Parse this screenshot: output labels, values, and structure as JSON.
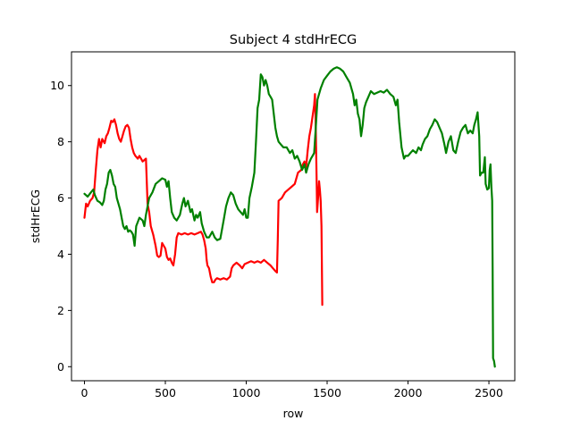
{
  "chart_data": {
    "type": "line",
    "title": "Subject 4 stdHrECG",
    "xlabel": "row",
    "ylabel": "stdHrECG",
    "xlim": [
      -80,
      2660
    ],
    "ylim": [
      -0.5,
      11.2
    ],
    "xticks": [
      0,
      500,
      1000,
      1500,
      2000,
      2500
    ],
    "yticks": [
      0,
      2,
      4,
      6,
      8,
      10
    ],
    "grid": false,
    "series": [
      {
        "color": "#ff0000",
        "points": [
          [
            0,
            5.3
          ],
          [
            10,
            5.8
          ],
          [
            20,
            5.7
          ],
          [
            35,
            5.9
          ],
          [
            50,
            6.0
          ],
          [
            60,
            6.2
          ],
          [
            70,
            7.0
          ],
          [
            80,
            7.7
          ],
          [
            90,
            8.1
          ],
          [
            100,
            7.8
          ],
          [
            110,
            8.1
          ],
          [
            125,
            7.95
          ],
          [
            135,
            8.2
          ],
          [
            145,
            8.3
          ],
          [
            155,
            8.5
          ],
          [
            165,
            8.75
          ],
          [
            175,
            8.7
          ],
          [
            185,
            8.8
          ],
          [
            195,
            8.6
          ],
          [
            205,
            8.3
          ],
          [
            215,
            8.1
          ],
          [
            225,
            8.0
          ],
          [
            235,
            8.2
          ],
          [
            245,
            8.4
          ],
          [
            255,
            8.55
          ],
          [
            265,
            8.6
          ],
          [
            275,
            8.5
          ],
          [
            285,
            8.1
          ],
          [
            295,
            7.8
          ],
          [
            305,
            7.6
          ],
          [
            315,
            7.5
          ],
          [
            330,
            7.4
          ],
          [
            340,
            7.5
          ],
          [
            350,
            7.4
          ],
          [
            360,
            7.3
          ],
          [
            370,
            7.35
          ],
          [
            380,
            7.4
          ],
          [
            385,
            6.6
          ],
          [
            390,
            5.8
          ],
          [
            400,
            5.5
          ],
          [
            410,
            5.0
          ],
          [
            425,
            4.7
          ],
          [
            440,
            4.3
          ],
          [
            450,
            3.95
          ],
          [
            460,
            3.9
          ],
          [
            470,
            3.95
          ],
          [
            480,
            4.4
          ],
          [
            490,
            4.3
          ],
          [
            500,
            4.2
          ],
          [
            510,
            3.9
          ],
          [
            520,
            3.8
          ],
          [
            530,
            3.85
          ],
          [
            540,
            3.7
          ],
          [
            550,
            3.6
          ],
          [
            560,
            4.0
          ],
          [
            570,
            4.6
          ],
          [
            580,
            4.75
          ],
          [
            600,
            4.7
          ],
          [
            620,
            4.75
          ],
          [
            640,
            4.7
          ],
          [
            660,
            4.75
          ],
          [
            680,
            4.7
          ],
          [
            700,
            4.75
          ],
          [
            720,
            4.8
          ],
          [
            730,
            4.7
          ],
          [
            740,
            4.5
          ],
          [
            750,
            4.2
          ],
          [
            755,
            3.8
          ],
          [
            760,
            3.6
          ],
          [
            770,
            3.5
          ],
          [
            780,
            3.2
          ],
          [
            790,
            3.0
          ],
          [
            800,
            3.0
          ],
          [
            810,
            3.1
          ],
          [
            820,
            3.15
          ],
          [
            840,
            3.1
          ],
          [
            860,
            3.15
          ],
          [
            880,
            3.1
          ],
          [
            900,
            3.2
          ],
          [
            910,
            3.5
          ],
          [
            920,
            3.6
          ],
          [
            940,
            3.7
          ],
          [
            960,
            3.6
          ],
          [
            975,
            3.5
          ],
          [
            990,
            3.65
          ],
          [
            1010,
            3.7
          ],
          [
            1030,
            3.75
          ],
          [
            1050,
            3.7
          ],
          [
            1070,
            3.75
          ],
          [
            1090,
            3.7
          ],
          [
            1110,
            3.8
          ],
          [
            1130,
            3.7
          ],
          [
            1150,
            3.6
          ],
          [
            1165,
            3.5
          ],
          [
            1180,
            3.4
          ],
          [
            1190,
            3.35
          ],
          [
            1195,
            4.5
          ],
          [
            1200,
            5.9
          ],
          [
            1220,
            6.0
          ],
          [
            1240,
            6.2
          ],
          [
            1260,
            6.3
          ],
          [
            1280,
            6.4
          ],
          [
            1300,
            6.5
          ],
          [
            1320,
            6.9
          ],
          [
            1340,
            7.0
          ],
          [
            1350,
            7.2
          ],
          [
            1360,
            7.3
          ],
          [
            1370,
            7.1
          ],
          [
            1380,
            7.7
          ],
          [
            1390,
            8.2
          ],
          [
            1400,
            8.5
          ],
          [
            1410,
            8.9
          ],
          [
            1420,
            9.3
          ],
          [
            1425,
            9.7
          ],
          [
            1430,
            8.5
          ],
          [
            1435,
            6.8
          ],
          [
            1438,
            5.5
          ],
          [
            1445,
            6.1
          ],
          [
            1450,
            6.6
          ],
          [
            1455,
            6.3
          ],
          [
            1460,
            5.9
          ],
          [
            1465,
            5.0
          ],
          [
            1470,
            2.2
          ]
        ]
      },
      {
        "color": "#008000",
        "points": [
          [
            0,
            6.15
          ],
          [
            20,
            6.05
          ],
          [
            40,
            6.2
          ],
          [
            55,
            6.3
          ],
          [
            65,
            6.1
          ],
          [
            80,
            5.9
          ],
          [
            95,
            5.85
          ],
          [
            110,
            5.75
          ],
          [
            120,
            5.9
          ],
          [
            130,
            6.3
          ],
          [
            140,
            6.5
          ],
          [
            150,
            6.9
          ],
          [
            160,
            7.0
          ],
          [
            170,
            6.8
          ],
          [
            180,
            6.5
          ],
          [
            190,
            6.4
          ],
          [
            200,
            6.0
          ],
          [
            210,
            5.8
          ],
          [
            220,
            5.6
          ],
          [
            230,
            5.3
          ],
          [
            240,
            5.0
          ],
          [
            250,
            4.9
          ],
          [
            260,
            5.0
          ],
          [
            270,
            4.8
          ],
          [
            280,
            4.85
          ],
          [
            290,
            4.8
          ],
          [
            300,
            4.7
          ],
          [
            310,
            4.3
          ],
          [
            320,
            5.0
          ],
          [
            340,
            5.3
          ],
          [
            360,
            5.2
          ],
          [
            370,
            5.0
          ],
          [
            380,
            5.4
          ],
          [
            400,
            6.0
          ],
          [
            420,
            6.2
          ],
          [
            440,
            6.5
          ],
          [
            460,
            6.6
          ],
          [
            480,
            6.7
          ],
          [
            500,
            6.65
          ],
          [
            510,
            6.4
          ],
          [
            520,
            6.6
          ],
          [
            530,
            6.0
          ],
          [
            540,
            5.5
          ],
          [
            555,
            5.3
          ],
          [
            570,
            5.2
          ],
          [
            590,
            5.4
          ],
          [
            605,
            5.8
          ],
          [
            615,
            6.0
          ],
          [
            625,
            5.7
          ],
          [
            640,
            5.9
          ],
          [
            655,
            5.5
          ],
          [
            665,
            5.6
          ],
          [
            680,
            5.2
          ],
          [
            690,
            5.4
          ],
          [
            700,
            5.3
          ],
          [
            715,
            5.5
          ],
          [
            725,
            5.1
          ],
          [
            740,
            4.8
          ],
          [
            755,
            4.6
          ],
          [
            770,
            4.6
          ],
          [
            790,
            4.8
          ],
          [
            805,
            4.6
          ],
          [
            820,
            4.5
          ],
          [
            840,
            4.55
          ],
          [
            860,
            5.2
          ],
          [
            875,
            5.7
          ],
          [
            890,
            6.0
          ],
          [
            905,
            6.2
          ],
          [
            920,
            6.1
          ],
          [
            935,
            5.8
          ],
          [
            950,
            5.6
          ],
          [
            965,
            5.5
          ],
          [
            980,
            5.4
          ],
          [
            990,
            5.6
          ],
          [
            1000,
            5.3
          ],
          [
            1010,
            5.3
          ],
          [
            1020,
            6.0
          ],
          [
            1035,
            6.4
          ],
          [
            1050,
            6.9
          ],
          [
            1060,
            8.0
          ],
          [
            1070,
            9.2
          ],
          [
            1080,
            9.5
          ],
          [
            1090,
            10.4
          ],
          [
            1100,
            10.3
          ],
          [
            1110,
            10.0
          ],
          [
            1120,
            10.2
          ],
          [
            1130,
            10.0
          ],
          [
            1140,
            9.7
          ],
          [
            1150,
            9.6
          ],
          [
            1160,
            9.5
          ],
          [
            1170,
            9.0
          ],
          [
            1180,
            8.5
          ],
          [
            1190,
            8.2
          ],
          [
            1200,
            8.0
          ],
          [
            1215,
            7.9
          ],
          [
            1230,
            7.8
          ],
          [
            1250,
            7.8
          ],
          [
            1270,
            7.6
          ],
          [
            1285,
            7.7
          ],
          [
            1300,
            7.4
          ],
          [
            1315,
            7.5
          ],
          [
            1330,
            7.3
          ],
          [
            1345,
            7.0
          ],
          [
            1360,
            7.2
          ],
          [
            1370,
            6.9
          ],
          [
            1385,
            7.2
          ],
          [
            1400,
            7.4
          ],
          [
            1410,
            7.5
          ],
          [
            1420,
            7.6
          ],
          [
            1430,
            8.5
          ],
          [
            1440,
            9.5
          ],
          [
            1460,
            9.9
          ],
          [
            1480,
            10.2
          ],
          [
            1500,
            10.35
          ],
          [
            1520,
            10.5
          ],
          [
            1540,
            10.6
          ],
          [
            1560,
            10.65
          ],
          [
            1580,
            10.6
          ],
          [
            1600,
            10.5
          ],
          [
            1620,
            10.3
          ],
          [
            1640,
            10.1
          ],
          [
            1660,
            9.7
          ],
          [
            1670,
            9.3
          ],
          [
            1680,
            9.5
          ],
          [
            1690,
            9.0
          ],
          [
            1700,
            8.8
          ],
          [
            1710,
            8.2
          ],
          [
            1720,
            8.6
          ],
          [
            1730,
            9.2
          ],
          [
            1740,
            9.4
          ],
          [
            1755,
            9.6
          ],
          [
            1770,
            9.8
          ],
          [
            1790,
            9.7
          ],
          [
            1810,
            9.75
          ],
          [
            1830,
            9.8
          ],
          [
            1850,
            9.75
          ],
          [
            1870,
            9.85
          ],
          [
            1890,
            9.7
          ],
          [
            1910,
            9.6
          ],
          [
            1925,
            9.3
          ],
          [
            1935,
            9.5
          ],
          [
            1945,
            8.7
          ],
          [
            1960,
            7.8
          ],
          [
            1975,
            7.4
          ],
          [
            1985,
            7.5
          ],
          [
            2000,
            7.5
          ],
          [
            2015,
            7.6
          ],
          [
            2030,
            7.7
          ],
          [
            2050,
            7.6
          ],
          [
            2065,
            7.8
          ],
          [
            2080,
            7.7
          ],
          [
            2090,
            7.9
          ],
          [
            2105,
            8.1
          ],
          [
            2120,
            8.2
          ],
          [
            2135,
            8.45
          ],
          [
            2150,
            8.6
          ],
          [
            2165,
            8.8
          ],
          [
            2180,
            8.7
          ],
          [
            2195,
            8.5
          ],
          [
            2210,
            8.3
          ],
          [
            2225,
            7.9
          ],
          [
            2235,
            7.6
          ],
          [
            2250,
            8.0
          ],
          [
            2265,
            8.2
          ],
          [
            2280,
            7.7
          ],
          [
            2295,
            7.6
          ],
          [
            2310,
            8.0
          ],
          [
            2325,
            8.35
          ],
          [
            2340,
            8.5
          ],
          [
            2355,
            8.6
          ],
          [
            2370,
            8.3
          ],
          [
            2385,
            8.4
          ],
          [
            2400,
            8.3
          ],
          [
            2410,
            8.6
          ],
          [
            2420,
            8.8
          ],
          [
            2430,
            9.05
          ],
          [
            2440,
            8.2
          ],
          [
            2445,
            6.8
          ],
          [
            2455,
            6.9
          ],
          [
            2465,
            6.9
          ],
          [
            2475,
            7.45
          ],
          [
            2480,
            6.5
          ],
          [
            2490,
            6.3
          ],
          [
            2500,
            6.35
          ],
          [
            2505,
            7.0
          ],
          [
            2510,
            7.2
          ],
          [
            2515,
            6.4
          ],
          [
            2520,
            5.9
          ],
          [
            2523,
            3.5
          ],
          [
            2526,
            0.3
          ],
          [
            2532,
            0.2
          ],
          [
            2537,
            0.0
          ]
        ]
      }
    ]
  }
}
